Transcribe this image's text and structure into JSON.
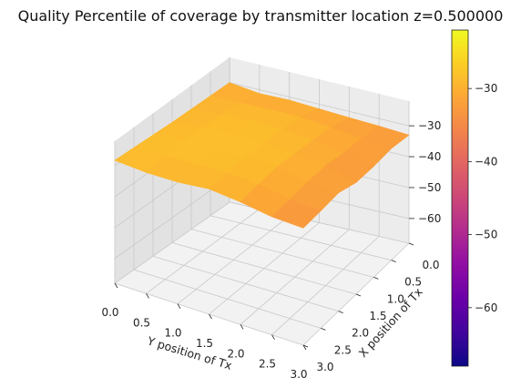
{
  "chart_data": {
    "type": "surface3d",
    "title": "Quality Percentile of coverage by transmitter location z=0.500000",
    "xlabel": "X position of Tx",
    "ylabel": "Y position of Tx",
    "x_ticks": [
      "0.0",
      "0.5",
      "1.0",
      "1.5",
      "2.0",
      "2.5",
      "3.0"
    ],
    "y_ticks": [
      "0.0",
      "0.5",
      "1.0",
      "1.5",
      "2.0",
      "2.5",
      "3.0"
    ],
    "z_ticks": [
      "−30",
      "−40",
      "−50",
      "−60"
    ],
    "z_tick_values": [
      -30,
      -40,
      -50,
      -60
    ],
    "zlim": [
      -68,
      -22
    ],
    "colorbar": {
      "colormap": "plasma",
      "range": [
        -68,
        -22
      ],
      "ticks": [
        "−30",
        "−40",
        "−50",
        "−60"
      ],
      "tick_values": [
        -30,
        -40,
        -50,
        -60
      ]
    },
    "grid": [
      0,
      0.5,
      1,
      1.5,
      2,
      2.5,
      3
    ],
    "surface_note_rows_y_cols_x": true,
    "z_values": [
      [
        -30.0,
        -29.8,
        -29.6,
        -29.4,
        -29.0,
        -28.6,
        -28.2
      ],
      [
        -31.2,
        -29.7,
        -28.9,
        -28.7,
        -28.3,
        -28.5,
        -29.4
      ],
      [
        -31.0,
        -29.5,
        -28.6,
        -28.3,
        -28.4,
        -28.6,
        -29.8
      ],
      [
        -31.5,
        -29.6,
        -28.8,
        -28.5,
        -28.4,
        -28.9,
        -29.3
      ],
      [
        -32.0,
        -30.5,
        -29.8,
        -29.4,
        -29.1,
        -29.8,
        -30.7
      ],
      [
        -32.4,
        -31.6,
        -31.5,
        -30.8,
        -31.2,
        -31.9,
        -32.6
      ],
      [
        -33.0,
        -32.4,
        -33.2,
        -33.5,
        -32.0,
        -32.8,
        -33.4
      ]
    ]
  }
}
